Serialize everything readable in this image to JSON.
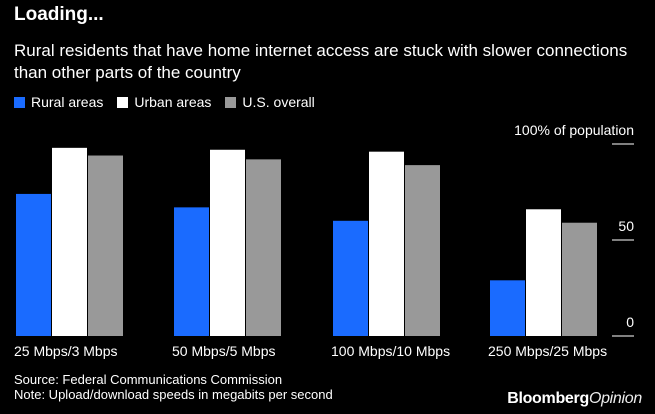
{
  "header": {
    "title": "Loading...",
    "subtitle": "Rural residents that have home internet access are stuck with slower connections than other parts of the country"
  },
  "legend": [
    {
      "label": "Rural areas",
      "color": "#1a6bff"
    },
    {
      "label": "Urban areas",
      "color": "#ffffff"
    },
    {
      "label": "U.S. overall",
      "color": "#999999"
    }
  ],
  "footer": {
    "source": "Source: Federal Communications Commission",
    "note": "Note: Upload/download speeds in megabits per second"
  },
  "brand": {
    "part1": "Bloomberg",
    "part2": "Opinion"
  },
  "chart_data": {
    "type": "bar",
    "categories": [
      "25 Mbps/3 Mbps",
      "50 Mbps/5 Mbps",
      "100 Mbps/10 Mbps",
      "250 Mbps/25 Mbps"
    ],
    "series": [
      {
        "name": "Rural areas",
        "color": "#1a6bff",
        "values": [
          74,
          67,
          60,
          29
        ]
      },
      {
        "name": "Urban areas",
        "color": "#ffffff",
        "values": [
          98,
          97,
          96,
          66
        ]
      },
      {
        "name": "U.S. overall",
        "color": "#999999",
        "values": [
          94,
          92,
          89,
          59
        ]
      }
    ],
    "yticks": [
      {
        "value": 100,
        "label": "100% of population"
      },
      {
        "value": 50,
        "label": "50"
      },
      {
        "value": 0,
        "label": "0"
      }
    ],
    "ylim": [
      0,
      100
    ],
    "legend_position": "top-left",
    "grid": false
  }
}
